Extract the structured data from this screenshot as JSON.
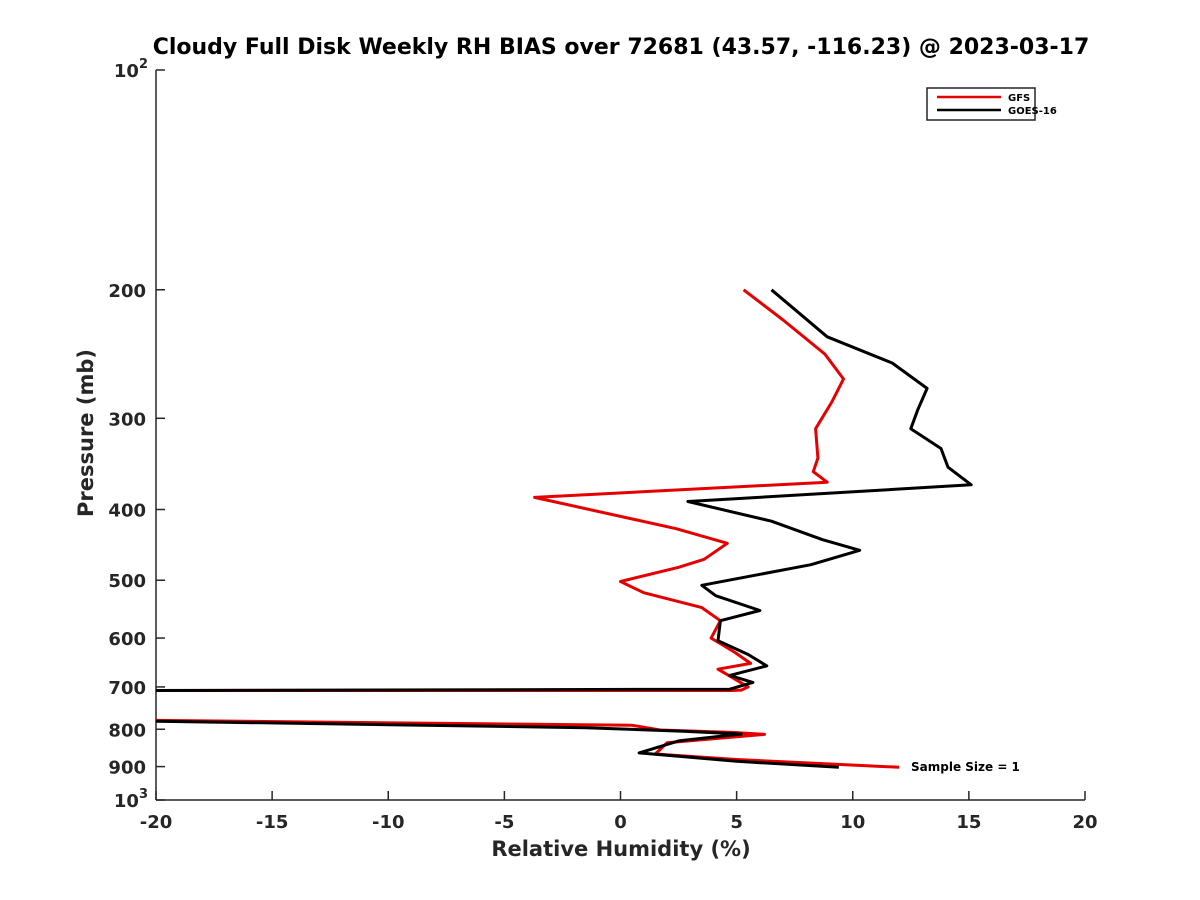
{
  "chart_data": {
    "type": "line",
    "title": "Cloudy Full Disk Weekly RH BIAS over 72681 (43.57, -116.23) @ 2023-03-17",
    "xlabel": "Relative Humidity (%)",
    "ylabel": "Pressure (mb)",
    "xlim": [
      -20,
      20
    ],
    "ylim": [
      100,
      1000
    ],
    "y_scale": "log",
    "y_reversed": true,
    "grid": false,
    "legend_position": "top-right",
    "x_ticks": [
      "-20",
      "-15",
      "-10",
      "-5",
      "0",
      "5",
      "10",
      "15",
      "20"
    ],
    "y_ticks": [
      {
        "value": 100,
        "base": "10",
        "exp": "2"
      },
      {
        "value": 200,
        "label": "200"
      },
      {
        "value": 300,
        "label": "300"
      },
      {
        "value": 400,
        "label": "400"
      },
      {
        "value": 500,
        "label": "500"
      },
      {
        "value": 600,
        "label": "600"
      },
      {
        "value": 700,
        "label": "700"
      },
      {
        "value": 800,
        "label": "800"
      },
      {
        "value": 900,
        "label": "900"
      },
      {
        "value": 1000,
        "base": "10",
        "exp": "3"
      }
    ],
    "series": [
      {
        "name": "GFS",
        "color": "#e60000",
        "points": [
          [
            5.3,
            200
          ],
          [
            7,
            220
          ],
          [
            8.8,
            245
          ],
          [
            9.6,
            265
          ],
          [
            9.1,
            285
          ],
          [
            8.4,
            310
          ],
          [
            8.5,
            340
          ],
          [
            8.3,
            355
          ],
          [
            8.9,
            367
          ],
          [
            -3.7,
            385
          ],
          [
            2.4,
            425
          ],
          [
            4.6,
            445
          ],
          [
            3.6,
            468
          ],
          [
            2.5,
            480
          ],
          [
            0,
            502
          ],
          [
            1,
            520
          ],
          [
            3.5,
            545
          ],
          [
            4.3,
            568
          ],
          [
            3.9,
            600
          ],
          [
            4.9,
            627
          ],
          [
            5.6,
            650
          ],
          [
            4.2,
            662
          ],
          [
            5.5,
            700
          ],
          [
            5.2,
            707
          ],
          [
            4.8,
            708
          ],
          [
            -20,
            708
          ]
        ]
      },
      {
        "name": "GOES-16",
        "color": "#000000",
        "points": [
          [
            6.5,
            200
          ],
          [
            8.9,
            232
          ],
          [
            11.7,
            252
          ],
          [
            13.2,
            273
          ],
          [
            12.8,
            292
          ],
          [
            12.5,
            310
          ],
          [
            13.8,
            330
          ],
          [
            14.1,
            350
          ],
          [
            15.1,
            370
          ],
          [
            2.9,
            390
          ],
          [
            6.5,
            415
          ],
          [
            8.7,
            440
          ],
          [
            10.3,
            455
          ],
          [
            8.2,
            476
          ],
          [
            3.5,
            508
          ],
          [
            4.1,
            525
          ],
          [
            6.0,
            550
          ],
          [
            4.3,
            568
          ],
          [
            4.2,
            605
          ],
          [
            5.5,
            632
          ],
          [
            6.3,
            655
          ],
          [
            4.7,
            675
          ],
          [
            5.7,
            690
          ],
          [
            4.7,
            705
          ],
          [
            -20,
            708
          ]
        ]
      },
      {
        "name": "GFS",
        "color": "#e60000",
        "points": [
          [
            -20,
            778
          ],
          [
            0.5,
            790
          ],
          [
            1.7,
            802
          ],
          [
            4.8,
            808
          ],
          [
            6.2,
            813
          ],
          [
            2,
            835
          ],
          [
            1.5,
            865
          ],
          [
            5,
            880
          ],
          [
            12,
            902
          ]
        ]
      },
      {
        "name": "GOES-16",
        "color": "#000000",
        "points": [
          [
            -20,
            780
          ],
          [
            -1.5,
            796
          ],
          [
            2.7,
            805
          ],
          [
            5.2,
            812
          ],
          [
            2.5,
            830
          ],
          [
            0.8,
            862
          ],
          [
            5,
            885
          ],
          [
            9.4,
            902
          ]
        ]
      }
    ],
    "legend": [
      {
        "name": "GFS",
        "color": "#e60000"
      },
      {
        "name": "GOES-16",
        "color": "#000000"
      }
    ],
    "annotation": "Sample Size = 1"
  }
}
